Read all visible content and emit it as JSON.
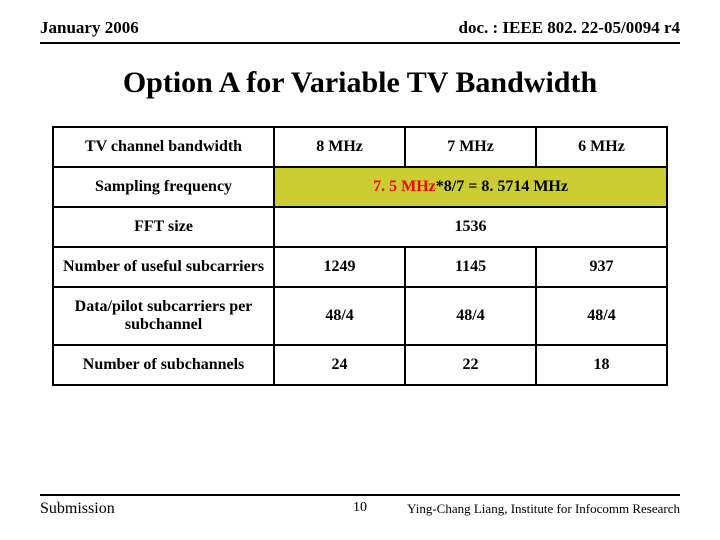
{
  "header": {
    "date": "January 2006",
    "doc": "doc. : IEEE 802. 22-05/0094 r4"
  },
  "title": "Option A for Variable TV Bandwidth",
  "table": {
    "columns": [
      "8 MHz",
      "7 MHz",
      "6 MHz"
    ],
    "rows": {
      "bandwidth_label": "TV channel bandwidth",
      "sampling_label": "Sampling frequency",
      "sampling_val_red": "7. 5 MHz",
      "sampling_val_black": "*8/7 = 8. 5714 MHz",
      "fft_label": "FFT size",
      "fft_val": "1536",
      "useful_label": "Number of useful subcarriers",
      "useful_vals": [
        "1249",
        "1145",
        "937"
      ],
      "pilot_label": "Data/pilot subcarriers per subchannel",
      "pilot_vals": [
        "48/4",
        "48/4",
        "48/4"
      ],
      "subch_label": "Number of subchannels",
      "subch_vals": [
        "24",
        "22",
        "18"
      ]
    },
    "highlight_color": "#cccc33",
    "border_color": "#000000"
  },
  "footer": {
    "submission": "Submission",
    "page": "10",
    "author": "Ying-Chang Liang, Institute for Infocomm Research"
  }
}
